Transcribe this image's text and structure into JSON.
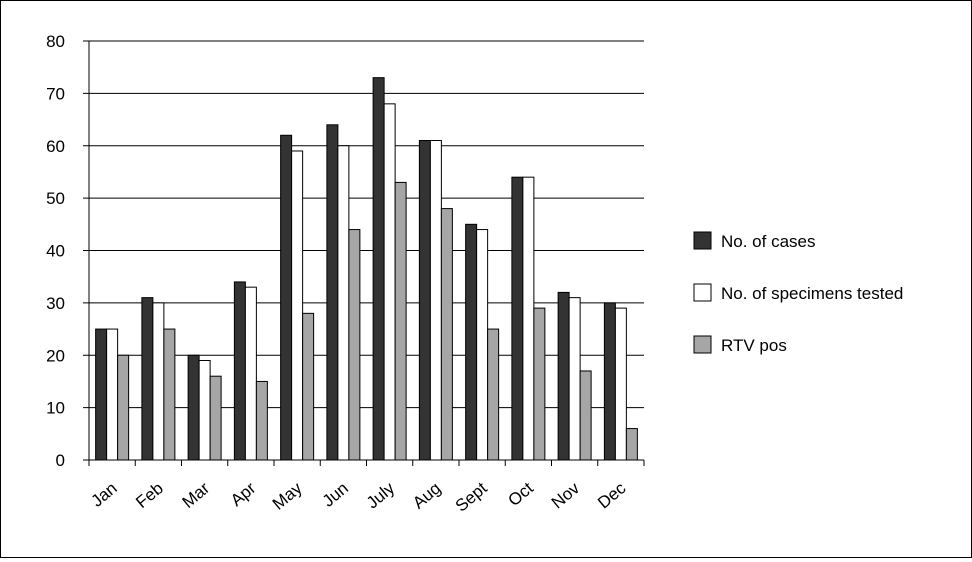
{
  "chart_data": {
    "type": "bar",
    "categories": [
      "Jan",
      "Feb",
      "Mar",
      "Apr",
      "May",
      "Jun",
      "July",
      "Aug",
      "Sept",
      "Oct",
      "Nov",
      "Dec"
    ],
    "series": [
      {
        "name": "No. of cases",
        "values": [
          25,
          31,
          20,
          34,
          62,
          64,
          73,
          61,
          45,
          54,
          32,
          30
        ],
        "color": "#333333"
      },
      {
        "name": "No. of specimens tested",
        "values": [
          25,
          30,
          19,
          33,
          59,
          60,
          68,
          61,
          44,
          54,
          31,
          29
        ],
        "color": "#ffffff"
      },
      {
        "name": "RTV pos",
        "values": [
          20,
          25,
          16,
          15,
          28,
          44,
          53,
          48,
          25,
          29,
          17,
          6
        ],
        "color": "#a6a6a6"
      }
    ],
    "ylim": [
      0,
      80
    ],
    "yticks": [
      0,
      10,
      20,
      30,
      40,
      50,
      60,
      70,
      80
    ],
    "grid": true,
    "legend_position": "right"
  }
}
